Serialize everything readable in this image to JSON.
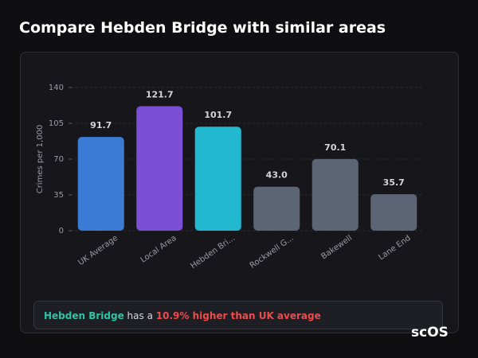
{
  "chart_data": {
    "type": "bar",
    "title": "Compare Hebden Bridge with similar areas",
    "y_label": "Crimes per 1,000",
    "categories": [
      "UK Average",
      "Local Area",
      "Hebden Bri...",
      "Rockwell G...",
      "Bakewell",
      "Lane End"
    ],
    "values": [
      91.7,
      121.7,
      101.7,
      43.0,
      70.1,
      35.7
    ],
    "value_labels": [
      "91.7",
      "121.7",
      "101.7",
      "43.0",
      "70.1",
      "35.7"
    ],
    "colors": [
      "#3a7bd5",
      "#7a4fd6",
      "#22b8cf",
      "#5b6576",
      "#5b6576",
      "#5b6576"
    ],
    "ylim": [
      0,
      140
    ],
    "yticks": [
      0,
      35,
      70,
      105,
      140
    ],
    "grid": true
  },
  "summary": {
    "place": "Hebden Bridge",
    "connector": "has a",
    "comparison": "10.9% higher than UK average"
  },
  "watermark": "scOS"
}
